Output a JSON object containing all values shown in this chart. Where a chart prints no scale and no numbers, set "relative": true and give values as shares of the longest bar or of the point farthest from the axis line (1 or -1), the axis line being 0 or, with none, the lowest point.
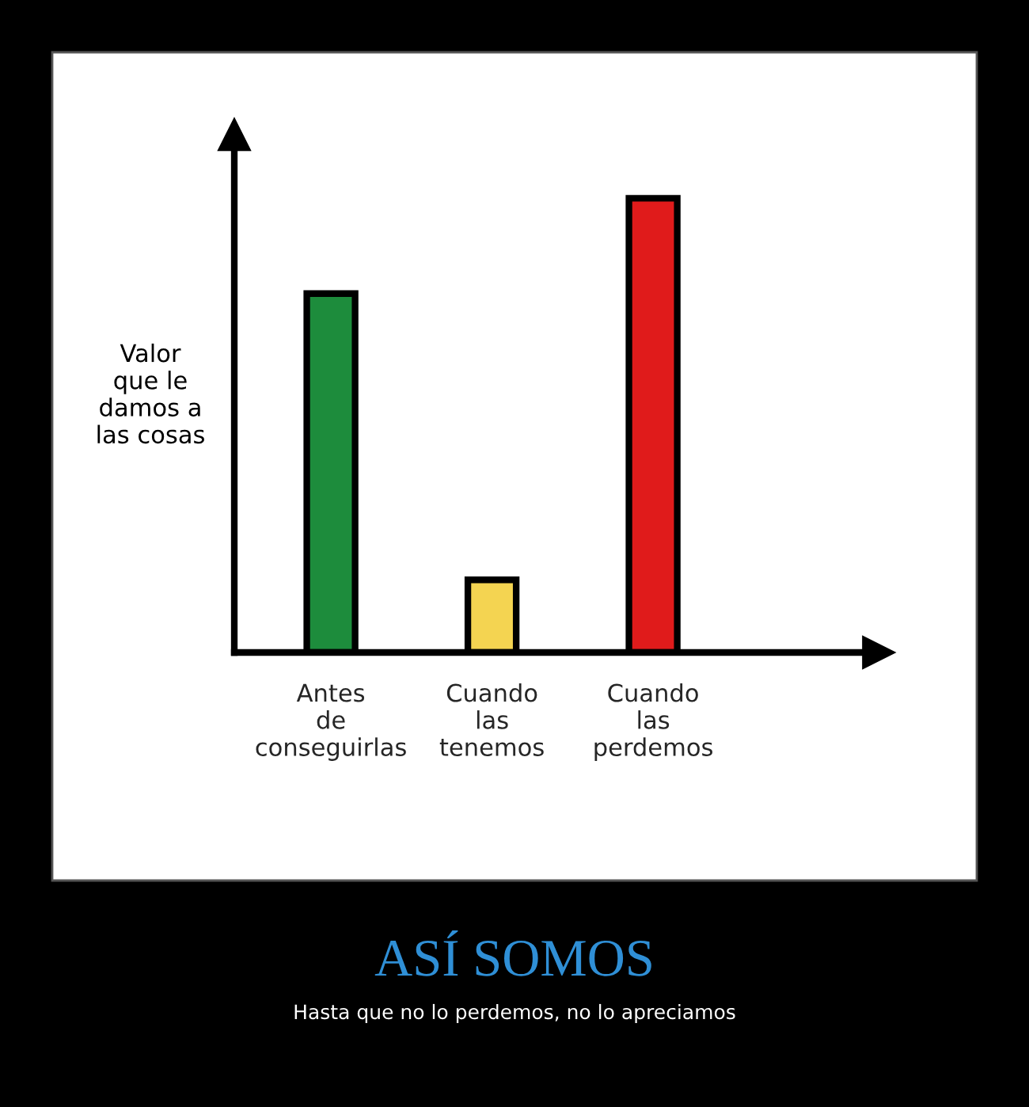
{
  "chart_data": {
    "type": "bar",
    "relative": true,
    "title": "ASÍ SOMOS",
    "subtitle": "Hasta que no lo perdemos, no lo apreciamos",
    "ylabel": "Valor\nque le\ndamos a\nlas cosas",
    "categories": [
      "Antes\nde\nconseguirlas",
      "Cuando\nlas\ntenemos",
      "Cuando\nlas\nperdemos"
    ],
    "values": [
      0.79,
      0.16,
      1
    ],
    "colors": [
      "#1d8c3c",
      "#f4d451",
      "#e01b1b"
    ],
    "grid": false,
    "legend": false
  }
}
